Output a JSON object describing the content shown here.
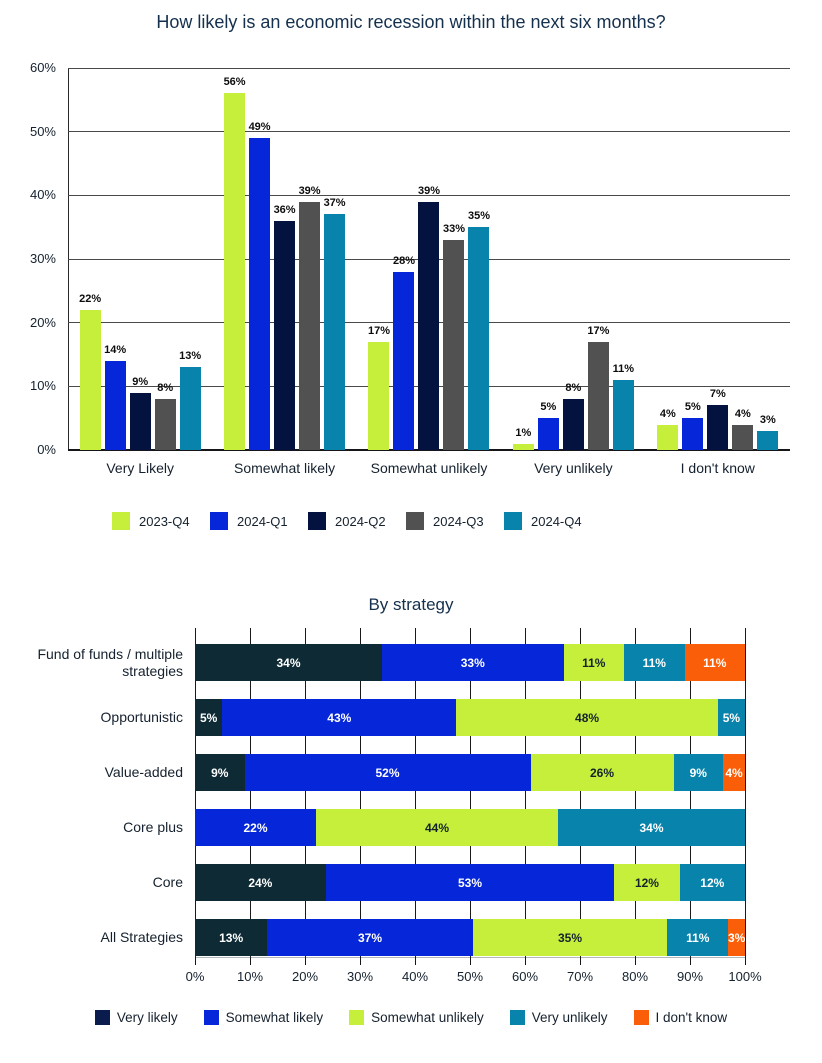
{
  "title_color": "#14304d",
  "text_color": "#15212e",
  "chart_data": [
    {
      "type": "bar",
      "orientation": "vertical-grouped",
      "title": "How likely is an economic recession within the next six months?",
      "categories": [
        "Very Likely",
        "Somewhat likely",
        "Somewhat unlikely",
        "Very unlikely",
        "I don't know"
      ],
      "series": [
        {
          "name": "2023-Q4",
          "color": "#c6ef3b",
          "values": [
            22,
            56,
            17,
            1,
            4
          ]
        },
        {
          "name": "2024-Q1",
          "color": "#0527d9",
          "values": [
            14,
            49,
            28,
            5,
            5
          ]
        },
        {
          "name": "2024-Q2",
          "color": "#041240",
          "values": [
            9,
            36,
            39,
            8,
            7
          ]
        },
        {
          "name": "2024-Q3",
          "color": "#515151",
          "values": [
            8,
            39,
            33,
            17,
            4
          ]
        },
        {
          "name": "2024-Q4",
          "color": "#0883ab",
          "values": [
            13,
            37,
            35,
            11,
            3
          ]
        }
      ],
      "ylim": [
        0,
        60
      ],
      "yticks": [
        "0%",
        "10%",
        "20%",
        "30%",
        "40%",
        "50%",
        "60%"
      ],
      "grid": "horizontal",
      "legend_position": "bottom",
      "value_suffix": "%"
    },
    {
      "type": "bar",
      "orientation": "horizontal-stacked",
      "title": "By strategy",
      "categories": [
        "Fund of funds / multiple strategies",
        "Opportunistic",
        "Value-added",
        "Core plus",
        "Core",
        "All Strategies"
      ],
      "series": [
        {
          "name": "Very likely",
          "color": "#0e2b35",
          "legend_color": "#0a1b4d",
          "label_color": "#ffffff",
          "values": [
            34,
            5,
            9,
            0,
            24,
            13
          ]
        },
        {
          "name": "Somewhat likely",
          "color": "#0527d9",
          "label_color": "#ffffff",
          "values": [
            33,
            43,
            52,
            22,
            53,
            37
          ]
        },
        {
          "name": "Somewhat unlikely",
          "color": "#c6ef3b",
          "label_color": "#14222c",
          "values": [
            11,
            48,
            26,
            44,
            12,
            35
          ]
        },
        {
          "name": "Very unlikely",
          "color": "#0883ab",
          "label_color": "#ffffff",
          "values": [
            11,
            5,
            9,
            34,
            12,
            11
          ]
        },
        {
          "name": "I don't know",
          "color": "#fb5e09",
          "label_color": "#ffffff",
          "values": [
            11,
            0,
            4,
            0,
            0,
            3
          ]
        }
      ],
      "xlim": [
        0,
        100
      ],
      "xticks": [
        "0%",
        "10%",
        "20%",
        "30%",
        "40%",
        "50%",
        "60%",
        "70%",
        "80%",
        "90%",
        "100%"
      ],
      "grid": "vertical",
      "legend_position": "bottom",
      "value_suffix": "%"
    }
  ]
}
